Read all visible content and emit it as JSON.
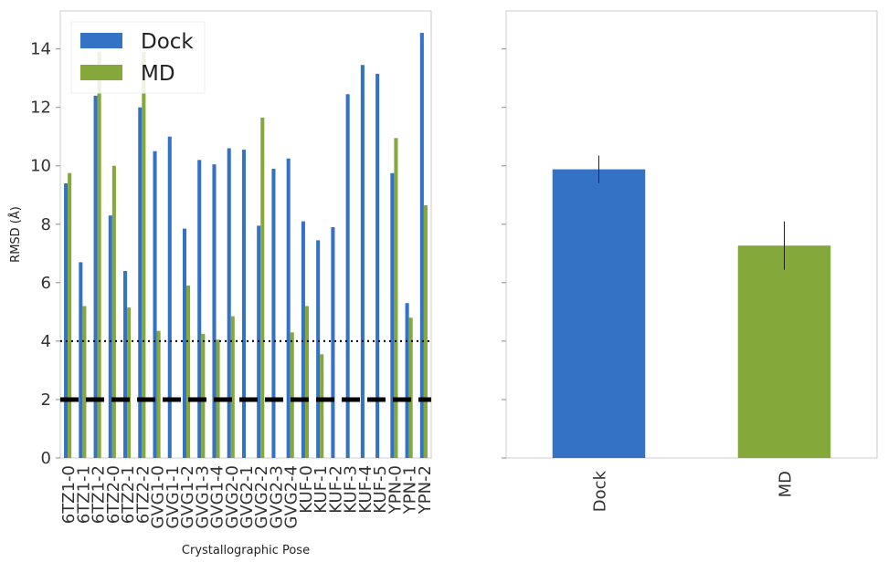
{
  "chart_data": [
    {
      "type": "bar",
      "xlabel": "Crystallographic Pose",
      "ylabel": "RMSD (Å)",
      "ylim": [
        0,
        15.3
      ],
      "yticks": [
        0,
        2,
        4,
        6,
        8,
        10,
        12,
        14
      ],
      "grid": false,
      "legend_position": "top-left",
      "categories": [
        "6TZ1-0",
        "6TZ1-1",
        "6TZ1-2",
        "6TZ2-0",
        "6TZ2-1",
        "6TZ2-2",
        "GVG1-0",
        "GVG1-1",
        "GVG1-2",
        "GVG1-3",
        "GVG1-4",
        "GVG2-0",
        "GVG2-1",
        "GVG2-2",
        "GVG2-3",
        "GVG2-4",
        "KUF-0",
        "KUF-1",
        "KUF-2",
        "KUF-3",
        "KUF-4",
        "KUF-5",
        "YPN-0",
        "YPN-1",
        "YPN-2"
      ],
      "series": [
        {
          "name": "Dock",
          "color": "#3472c6",
          "values": [
            9.4,
            6.7,
            12.4,
            8.3,
            6.4,
            12.0,
            10.5,
            11.0,
            7.85,
            10.2,
            10.05,
            10.6,
            10.55,
            7.95,
            9.9,
            10.25,
            8.1,
            7.45,
            7.9,
            12.45,
            13.45,
            13.15,
            9.75,
            5.3,
            14.55
          ]
        },
        {
          "name": "MD",
          "color": "#84a83a",
          "values": [
            9.75,
            5.2,
            13.9,
            10.0,
            5.15,
            13.9,
            4.35,
            0,
            5.9,
            4.25,
            4.05,
            4.85,
            0,
            11.65,
            0,
            4.3,
            5.2,
            3.55,
            0,
            0,
            0,
            0,
            10.95,
            4.8,
            8.65
          ]
        }
      ],
      "reference_lines": [
        {
          "y": 4,
          "style": "dotted"
        },
        {
          "y": 2,
          "style": "dashed"
        }
      ]
    },
    {
      "type": "bar",
      "categories": [
        "Dock",
        "MD"
      ],
      "values": [
        9.88,
        7.27
      ],
      "errors": [
        0.47,
        0.83
      ],
      "colors": [
        "#3472c6",
        "#84a83a"
      ],
      "ylim": [
        0,
        15.3
      ],
      "grid": false
    }
  ]
}
